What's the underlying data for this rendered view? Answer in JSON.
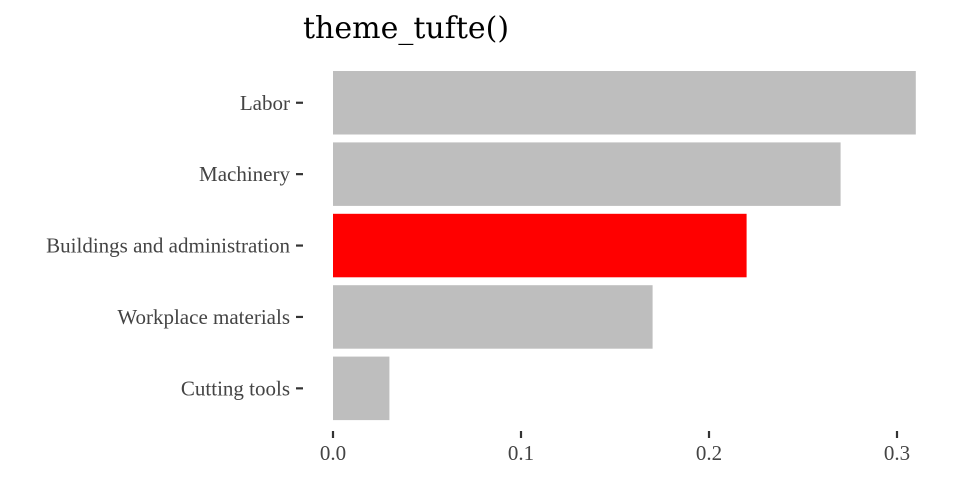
{
  "chart_data": {
    "type": "bar",
    "orientation": "horizontal",
    "title": "theme_tufte()",
    "xlabel": "",
    "ylabel": "",
    "categories": [
      "Labor",
      "Machinery",
      "Buildings and administration",
      "Workplace materials",
      "Cutting tools"
    ],
    "values": [
      0.31,
      0.27,
      0.22,
      0.17,
      0.03
    ],
    "bar_colors": [
      "#bebebe",
      "#bebebe",
      "#ff0000",
      "#bebebe",
      "#bebebe"
    ],
    "highlight_category": "Buildings and administration",
    "xlim": [
      0,
      0.31
    ],
    "xticks": [
      0.0,
      0.1,
      0.2,
      0.3
    ],
    "xtick_labels": [
      "0.0",
      "0.1",
      "0.2",
      "0.3"
    ],
    "grid": false,
    "legend": "none"
  }
}
